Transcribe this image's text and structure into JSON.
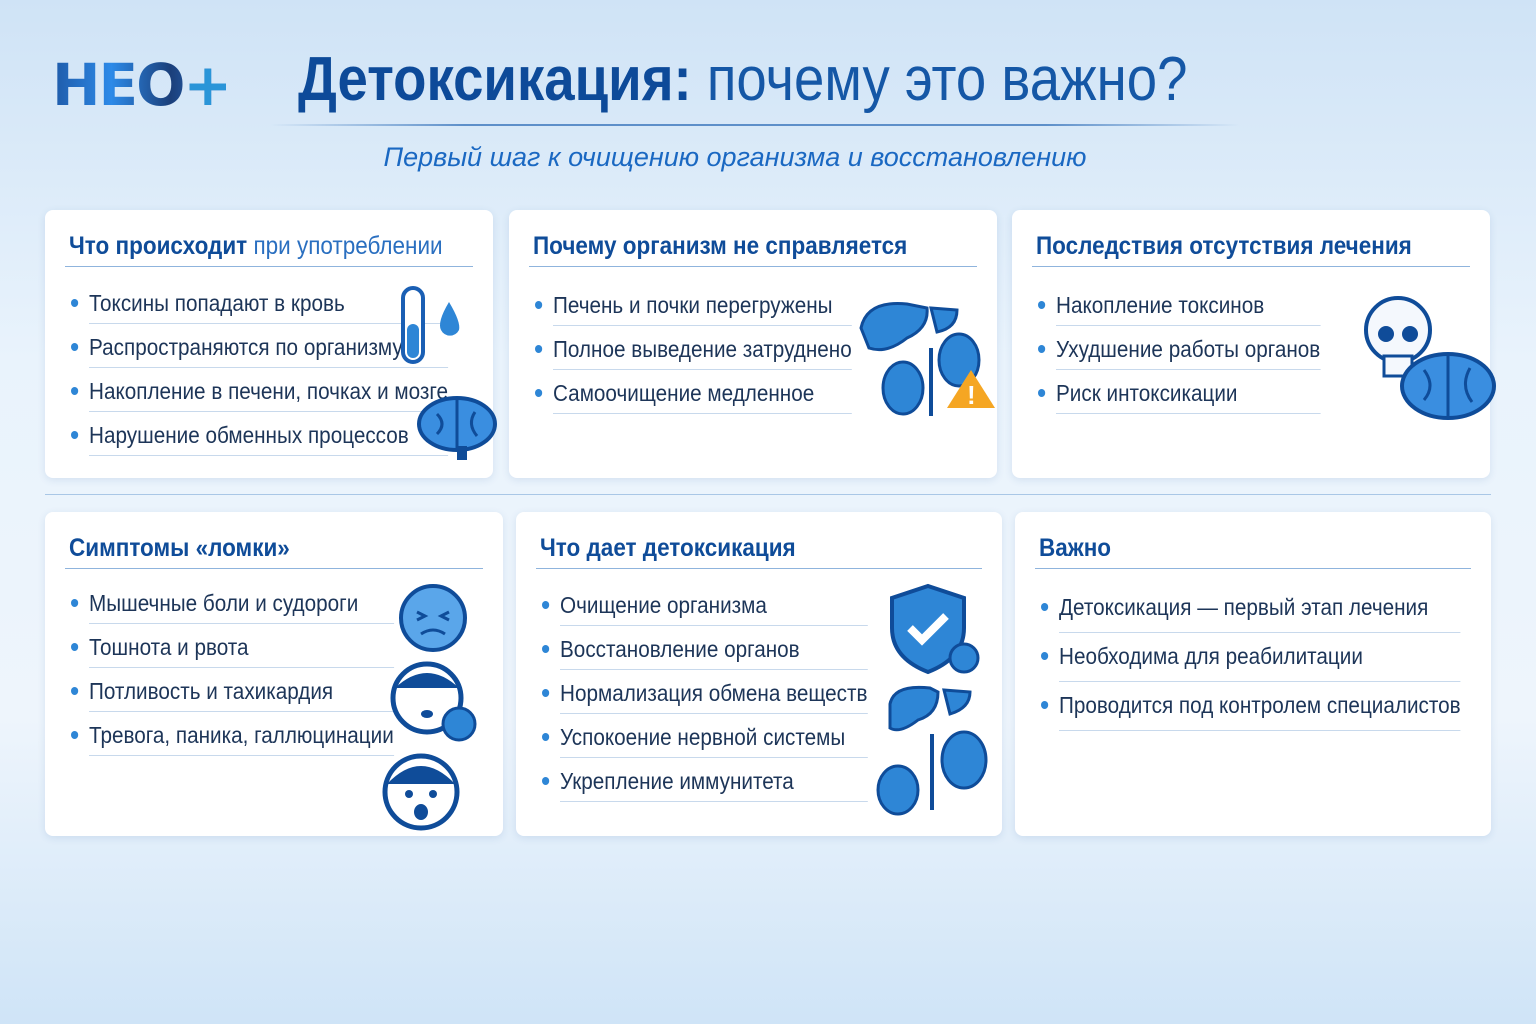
{
  "logo": {
    "text": "НЕО",
    "plus": "+"
  },
  "header": {
    "title_bold": "Детоксикация:",
    "title_rest": " почему это важно?",
    "subtitle": "Первый шаг к очищению организма и восстановлению"
  },
  "cards": [
    {
      "title_bold": "Что происходит",
      "title_light": " при употреблении",
      "items": [
        "Токсины попадают в кровь",
        "Распространяются по организму",
        "Накопление в печени, почках и мозге",
        "Нарушение обменных процессов"
      ],
      "icons": [
        "test-tube-icon",
        "drop-icon",
        "brain-icon"
      ]
    },
    {
      "title_bold": "Почему организм не справляется",
      "items": [
        "Печень и почки перегружены",
        "Полное выведение затруднено",
        "Самоочищение медленное"
      ],
      "icons": [
        "liver-icon",
        "kidneys-icon",
        "warning-icon"
      ]
    },
    {
      "title_bold": "Последствия отсутствия лечения",
      "items": [
        "Накопление токсинов",
        "Ухудшение работы органов",
        "Риск интоксикации"
      ],
      "icons": [
        "skull-icon",
        "brain-icon"
      ]
    },
    {
      "title_bold": "Симптомы «ломки»",
      "items": [
        "Мышечные боли и судороги",
        "Тошнота и рвота",
        "Потливость и тахикардия",
        "Тревога, паника, галлюцинации"
      ],
      "icons": [
        "sick-face-icon",
        "sweating-face-icon",
        "anxious-face-icon"
      ]
    },
    {
      "title_bold": "Что дает детоксикация",
      "items": [
        "Очищение организма",
        "Восстановление органов",
        "Нормализация обмена веществ",
        "Успокоение нервной системы",
        "Укрепление иммунитета"
      ],
      "icons": [
        "shield-check-icon",
        "liver-icon",
        "kidneys-icon"
      ]
    },
    {
      "title_bold": "Важно",
      "items": [
        "Детоксикация — первый этап лечения",
        "Необходима для реабилитации",
        "Проводится под контролем специалистов"
      ]
    }
  ],
  "colors": {
    "primary": "#0f4c99",
    "accent": "#2e86d6",
    "warning": "#f5a623"
  }
}
